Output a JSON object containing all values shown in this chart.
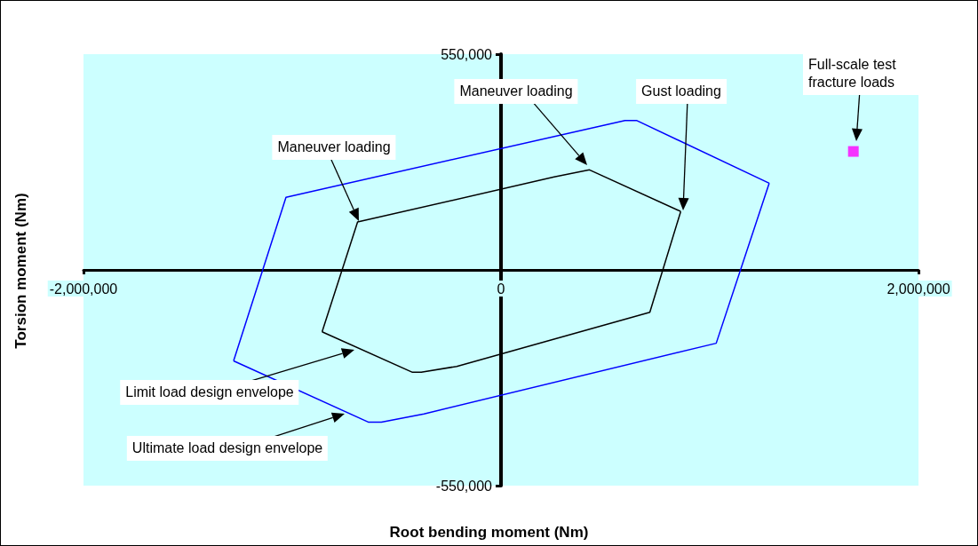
{
  "chart_data": {
    "type": "line",
    "xlabel": "Root bending moment (Nm)",
    "ylabel": "Torsion moment (Nm)",
    "xlim": [
      -2000000,
      2000000
    ],
    "xticks": [
      {
        "value": -2000000,
        "label": "-2,000,000"
      },
      0,
      {
        "value": 2000000,
        "label": "2,000,000"
      }
    ],
    "ylim": [
      -550000,
      550000
    ],
    "yticks": [
      {
        "value": -550000,
        "label": "-550,000"
      },
      {
        "value": 550000,
        "label": "550,000"
      }
    ],
    "grid": false,
    "marker": "none",
    "line_style": "solid",
    "series": [
      {
        "color": "#0000ff",
        "x": [
          -1281000,
          -1030000,
          594000,
          649000,
          1285000
        ],
        "values": [
          -232000,
          185000,
          381000,
          381000,
          221000
        ]
      },
      {
        "color": "#0000ff",
        "x": [
          -1281000,
          -636000,
          -573000,
          -369000,
          1031000,
          1285000
        ],
        "values": [
          -232000,
          -388000,
          -388000,
          -367000,
          -187000,
          221000
        ]
      },
      {
        "color": "#000000",
        "x": [
          -857000,
          -687000,
          255000,
          424000,
          861000
        ],
        "values": [
          -158000,
          122000,
          237000,
          255000,
          149000
        ]
      },
      {
        "color": "#000000",
        "x": [
          -857000,
          -424000,
          -382000,
          -212000,
          713000,
          861000
        ],
        "values": [
          -158000,
          -261000,
          -261000,
          -246000,
          -108000,
          149000
        ]
      },
      {
        "type": "scatter",
        "marker": "square",
        "color": "#ff00ff",
        "x": [
          1688000
        ],
        "values": [
          302000
        ]
      }
    ],
    "annotations": [
      "Maneuver loading",
      "Maneuver loading",
      "Gust loading",
      "Full-scale test fracture loads",
      "Limit load design envelope",
      "Ultimate load design envelope"
    ]
  }
}
